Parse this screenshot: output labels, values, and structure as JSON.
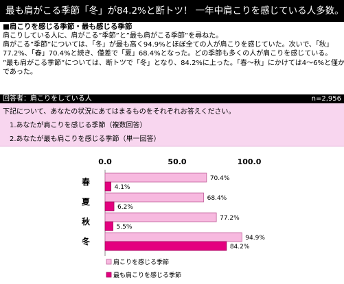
{
  "headline": "最も肩がこる季節「冬」が84.2%と断トツ！ 一年中肩こりを感じている人多数。",
  "subheading": "■肩こりを感じる季節・最も感じる季節",
  "paragraph": [
    "肩こりしている人に、肩がこる”季節”と”最も肩がこる季節”を尋ねた。",
    "肩がこる”季節”については、「冬」が最も高く94.9%とほぼ全ての人が肩こりを感じていた。次いで、「秋」",
    "77.2%、「春」70.4%と続き、僅差で「夏」68.4%となった。どの季節も多くの人が肩こりを感じている。",
    "”最も肩がこる季節”については、断トツで「冬」となり、84.2%に上った。「春～秋」にかけては4～6%と僅か",
    "であった。"
  ],
  "respondents": {
    "label": "回答者：肩こりをしている人",
    "n": "n=2,956"
  },
  "question": {
    "intro": "下記について、あなたの状況にあてはまるものをそれぞれお答えください。",
    "q1": "1.あなたが肩こりを感じる季節（複数回答）",
    "q2": "2.あなたが最も肩こりを感じる季節（単一回答）"
  },
  "chart_data": {
    "type": "bar",
    "orientation": "horizontal",
    "categories": [
      "春",
      "夏",
      "秋",
      "冬"
    ],
    "series": [
      {
        "name": "肩こりを感じる季節",
        "values": [
          70.4,
          68.4,
          77.2,
          94.9
        ],
        "labels": [
          "70.4%",
          "68.4%",
          "77.2%",
          "94.9%"
        ]
      },
      {
        "name": "最も肩こりを感じる季節",
        "values": [
          4.1,
          6.2,
          5.5,
          84.2
        ],
        "labels": [
          "4.1%",
          "6.2%",
          "5.5%",
          "84.2%"
        ]
      }
    ],
    "ticks": [
      "0.0",
      "50.0",
      "100.0"
    ],
    "xlim": [
      0,
      100
    ],
    "legend_position": "bottom-center",
    "colors": {
      "series_1": "#f7b9df",
      "series_2": "#e4007f",
      "series_1_stroke": "#c0609a",
      "series_2_stroke": "#a0005a"
    }
  }
}
